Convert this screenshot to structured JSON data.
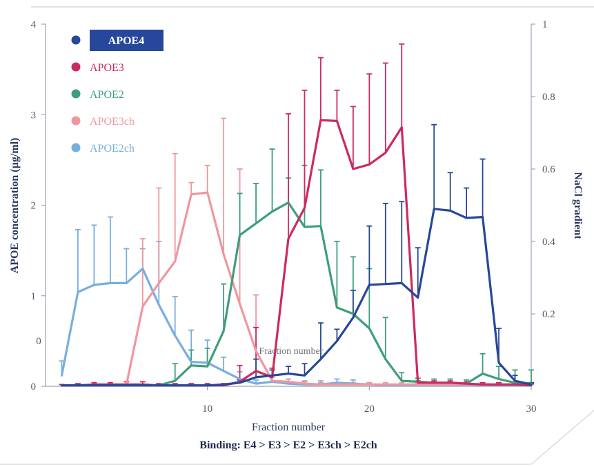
{
  "chart_data": {
    "type": "line",
    "x": [
      1,
      2,
      3,
      4,
      5,
      6,
      7,
      8,
      9,
      10,
      11,
      12,
      13,
      14,
      15,
      16,
      17,
      18,
      19,
      20,
      21,
      22,
      23,
      24,
      25,
      26,
      27,
      28,
      29,
      30
    ],
    "xlabel": "Fraction number",
    "ylabel": "APOE concentration (µg/ml)",
    "y2label": "NaCl gradient",
    "xlim": [
      0,
      30
    ],
    "ylim": [
      0,
      4
    ],
    "y2lim": [
      0,
      1
    ],
    "xticks": [
      10,
      20,
      30
    ],
    "yticks": [
      0,
      1,
      2,
      3,
      4
    ],
    "y2ticks": [
      0.2,
      0.4,
      0.6,
      0.8,
      1
    ],
    "y2tick_labels": [
      "0.2",
      "0.4",
      "0.6",
      "0.8",
      "1"
    ],
    "stray_tick_label": "0",
    "annotation": "Fraction number",
    "subtitle": "Binding: E4 > E3 > E2 > E3ch > E2ch",
    "legend_position": "top-left",
    "series": [
      {
        "name": "APOE4",
        "color": "#27479a",
        "highlight": true,
        "values": [
          0.01,
          0.01,
          0.01,
          0.01,
          0.01,
          0.01,
          0.01,
          0.01,
          0.01,
          0.01,
          0.02,
          0.04,
          0.1,
          0.12,
          0.14,
          0.12,
          0.3,
          0.5,
          0.76,
          1.12,
          1.13,
          1.14,
          0.98,
          1.96,
          1.94,
          1.86,
          1.87,
          0.26,
          0.06,
          0.02
        ],
        "errors": [
          0,
          0,
          0,
          0,
          0,
          0,
          0,
          0,
          0,
          0,
          0,
          0.03,
          0.2,
          0.06,
          0.08,
          0.13,
          0.4,
          0.13,
          0.3,
          0.65,
          0.89,
          0.9,
          0.55,
          0.93,
          0.42,
          0.33,
          0.64,
          0.38,
          0.06,
          0.02
        ]
      },
      {
        "name": "APOE3",
        "color": "#cc2a5e",
        "values": [
          0.01,
          0.01,
          0.02,
          0.02,
          0.02,
          0.02,
          0.01,
          0.01,
          0.01,
          0.01,
          0.01,
          0.05,
          0.17,
          0.1,
          1.63,
          1.97,
          2.94,
          2.93,
          2.4,
          2.45,
          2.58,
          2.86,
          0.04,
          0.04,
          0.04,
          0.03,
          0.02,
          0.02,
          0.02,
          0.01
        ],
        "errors": [
          0.01,
          0.02,
          0.02,
          0.02,
          0.03,
          0.03,
          0.02,
          0.02,
          0.02,
          0.02,
          0.02,
          0.18,
          0.48,
          0.1,
          1.38,
          1.3,
          0.69,
          0.34,
          0.69,
          1.0,
          0.99,
          0.92,
          0.02,
          0.02,
          0.02,
          0.02,
          0.02,
          0.02,
          0.02,
          0.02
        ]
      },
      {
        "name": "APOE2",
        "color": "#3e9e7a",
        "values": [
          0.01,
          0.01,
          0.01,
          0.01,
          0.01,
          0.01,
          0.01,
          0.06,
          0.23,
          0.22,
          0.61,
          1.67,
          1.8,
          1.93,
          2.03,
          1.76,
          1.77,
          0.87,
          0.8,
          0.64,
          0.3,
          0.06,
          0.05,
          0.04,
          0.04,
          0.03,
          0.14,
          0.08,
          0.04,
          0.03
        ],
        "errors": [
          0,
          0,
          0,
          0,
          0,
          0,
          0,
          0.19,
          0.17,
          0.2,
          0.52,
          0.46,
          0.44,
          0.69,
          0.27,
          0.68,
          0.62,
          0.73,
          0.63,
          0.66,
          0.46,
          0.09,
          0.04,
          0.04,
          0.04,
          0.04,
          0.22,
          0.14,
          0.14,
          0.15
        ]
      },
      {
        "name": "APOE3ch",
        "color": "#f0969e",
        "values": [
          0.01,
          0.01,
          0.01,
          0.01,
          0.02,
          0.88,
          1.14,
          1.38,
          2.12,
          2.14,
          1.46,
          0.91,
          0.39,
          0.06,
          0.05,
          0.03,
          0.02,
          0.02,
          0.02,
          0.02,
          0.02,
          0.02,
          0.02,
          0.02,
          0.02,
          0.02,
          0.02,
          0.02,
          0.02,
          0.02
        ],
        "errors": [
          0,
          0,
          0,
          0,
          0,
          0.75,
          1.05,
          1.19,
          0.13,
          0.3,
          1.5,
          1.49,
          0.62,
          0.04,
          0.03,
          0.02,
          0.02,
          0.02,
          0.02,
          0.02,
          0.02,
          0.02,
          0.02,
          0.02,
          0.02,
          0.02,
          0.02,
          0.02,
          0.02,
          0.02
        ]
      },
      {
        "name": "APOE2ch",
        "color": "#78aedf",
        "values": [
          0.12,
          1.04,
          1.12,
          1.14,
          1.14,
          1.3,
          0.9,
          0.56,
          0.27,
          0.26,
          0.17,
          0.08,
          0.03,
          0.05,
          0.03,
          0.02,
          0.02,
          0.04,
          0.03,
          0.02,
          0.01,
          0.01,
          0.01,
          0.01,
          0.01,
          0.01,
          0.01,
          0.01,
          0.01,
          0.01
        ],
        "errors": [
          0.16,
          0.69,
          0.66,
          0.73,
          0.38,
          0.22,
          0.7,
          0.43,
          0.35,
          0.25,
          0.15,
          0.08,
          0.04,
          0.05,
          0.05,
          0.04,
          0.04,
          0.04,
          0.04,
          0.02,
          0.01,
          0.01,
          0.01,
          0.01,
          0.01,
          0.01,
          0.01,
          0.01,
          0.01,
          0.01
        ]
      }
    ]
  }
}
